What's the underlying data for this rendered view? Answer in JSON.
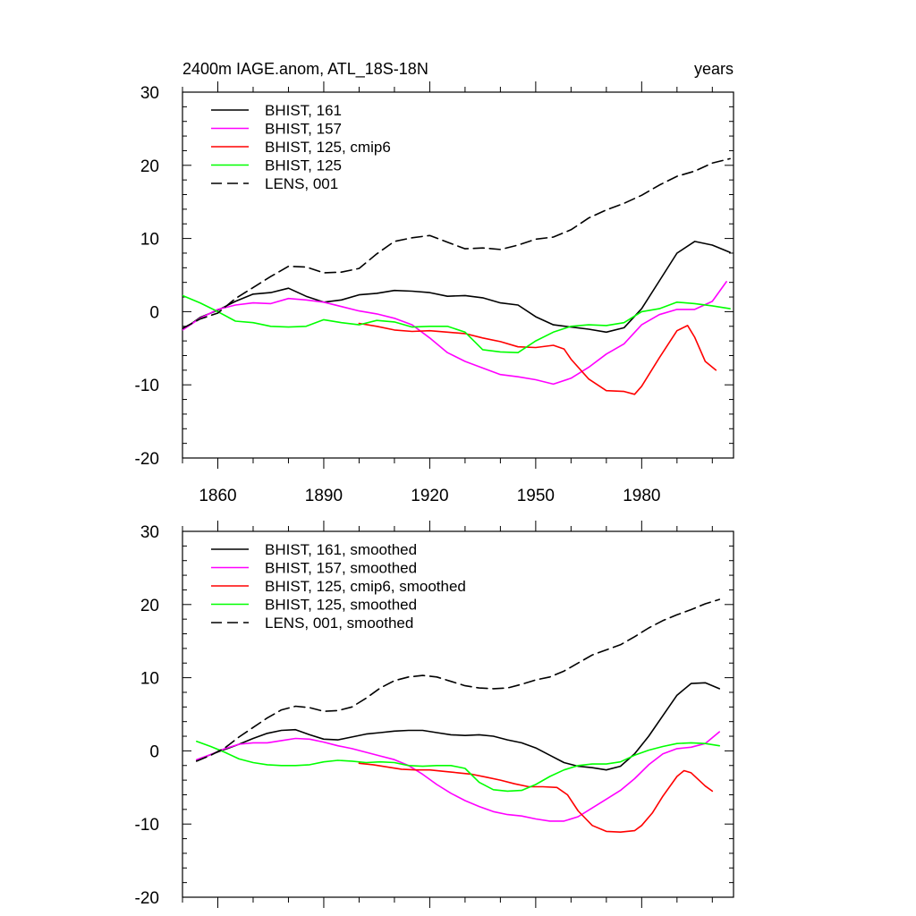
{
  "chart_data": [
    {
      "type": "line",
      "title": "2400m IAGE.anom, ATL_18S-18N",
      "units": "years",
      "xlim": [
        1850,
        2006
      ],
      "ylim": [
        -20,
        30
      ],
      "xticks": [
        1860,
        1890,
        1920,
        1950,
        1980
      ],
      "yticks": [
        -20,
        -10,
        0,
        10,
        20,
        30
      ],
      "show_x_tick_labels": true,
      "legend": "top-left",
      "series": [
        {
          "name": "BHIST, 161",
          "color": "#000000",
          "dash": "solid",
          "x": [
            1850,
            1855,
            1860,
            1865,
            1870,
            1875,
            1880,
            1885,
            1890,
            1895,
            1900,
            1905,
            1910,
            1915,
            1920,
            1925,
            1930,
            1935,
            1940,
            1945,
            1950,
            1955,
            1960,
            1965,
            1970,
            1975,
            1980,
            1985,
            1990,
            1995,
            2000,
            2005
          ],
          "y": [
            -2.5,
            -0.8,
            0.2,
            1.4,
            2.4,
            2.6,
            3.2,
            2.1,
            1.3,
            1.6,
            2.3,
            2.5,
            2.9,
            2.8,
            2.6,
            2.1,
            2.2,
            1.9,
            1.2,
            0.9,
            -0.7,
            -1.8,
            -2.1,
            -2.4,
            -2.8,
            -2.2,
            0.4,
            4.2,
            8.0,
            9.6,
            9.1,
            8.1
          ]
        },
        {
          "name": "BHIST, 157",
          "color": "#ff00ff",
          "dash": "solid",
          "x": [
            1850,
            1855,
            1860,
            1865,
            1870,
            1875,
            1880,
            1885,
            1890,
            1895,
            1900,
            1905,
            1910,
            1915,
            1920,
            1925,
            1930,
            1935,
            1940,
            1945,
            1950,
            1955,
            1960,
            1965,
            1970,
            1975,
            1980,
            1985,
            1990,
            1995,
            2000,
            2004
          ],
          "y": [
            -2.5,
            -0.9,
            0.3,
            0.9,
            1.2,
            1.1,
            1.8,
            1.6,
            1.3,
            0.7,
            0.1,
            -0.3,
            -0.9,
            -1.8,
            -3.6,
            -5.6,
            -6.8,
            -7.7,
            -8.6,
            -8.9,
            -9.3,
            -9.9,
            -9.1,
            -7.6,
            -5.8,
            -4.4,
            -1.8,
            -0.4,
            0.3,
            0.3,
            1.4,
            4.1
          ]
        },
        {
          "name": "BHIST, 125, cmip6",
          "color": "#ff0000",
          "dash": "solid",
          "x": [
            1900,
            1905,
            1910,
            1915,
            1920,
            1925,
            1930,
            1935,
            1940,
            1945,
            1950,
            1955,
            1958,
            1960,
            1965,
            1970,
            1975,
            1978,
            1980,
            1985,
            1990,
            1993,
            1995,
            1998,
            2001
          ],
          "y": [
            -1.6,
            -2.0,
            -2.5,
            -2.7,
            -2.6,
            -2.8,
            -3.0,
            -3.6,
            -4.1,
            -4.8,
            -4.9,
            -4.6,
            -5.1,
            -6.5,
            -9.2,
            -10.8,
            -10.9,
            -11.3,
            -10.2,
            -6.3,
            -2.6,
            -1.9,
            -3.5,
            -6.8,
            -8.0
          ]
        },
        {
          "name": "BHIST, 125",
          "color": "#00ff00",
          "dash": "solid",
          "x": [
            1850,
            1855,
            1860,
            1865,
            1870,
            1875,
            1880,
            1885,
            1890,
            1895,
            1900,
            1905,
            1910,
            1915,
            1920,
            1925,
            1930,
            1935,
            1940,
            1945,
            1950,
            1955,
            1960,
            1965,
            1970,
            1975,
            1980,
            1985,
            1990,
            1995,
            2000,
            2005
          ],
          "y": [
            2.2,
            1.2,
            0.0,
            -1.3,
            -1.5,
            -2.0,
            -2.1,
            -2.0,
            -1.1,
            -1.5,
            -1.8,
            -1.2,
            -1.4,
            -2.1,
            -2.0,
            -2.0,
            -2.8,
            -5.2,
            -5.5,
            -5.6,
            -4.0,
            -2.8,
            -2.0,
            -1.8,
            -1.9,
            -1.5,
            0.0,
            0.4,
            1.3,
            1.1,
            0.8,
            0.4
          ]
        },
        {
          "name": "LENS, 001",
          "color": "#000000",
          "dash": "dashed",
          "x": [
            1850,
            1855,
            1860,
            1865,
            1870,
            1875,
            1880,
            1885,
            1890,
            1895,
            1900,
            1905,
            1910,
            1915,
            1920,
            1925,
            1930,
            1935,
            1940,
            1945,
            1950,
            1955,
            1960,
            1965,
            1970,
            1975,
            1980,
            1985,
            1990,
            1995,
            2000,
            2005
          ],
          "y": [
            -2.3,
            -1.0,
            -0.2,
            1.8,
            3.3,
            4.8,
            6.2,
            6.1,
            5.3,
            5.4,
            5.9,
            7.9,
            9.6,
            10.1,
            10.4,
            9.5,
            8.6,
            8.7,
            8.5,
            9.1,
            9.9,
            10.2,
            11.2,
            12.8,
            13.9,
            14.8,
            15.9,
            17.3,
            18.5,
            19.2,
            20.3,
            20.9
          ]
        }
      ]
    },
    {
      "type": "line",
      "title": "",
      "units": "",
      "xlim": [
        1850,
        2006
      ],
      "ylim": [
        -20,
        30
      ],
      "xticks": [
        1860,
        1890,
        1920,
        1950,
        1980
      ],
      "yticks": [
        -20,
        -10,
        0,
        10,
        20,
        30
      ],
      "show_x_tick_labels": false,
      "legend": "top-left",
      "series": [
        {
          "name": "BHIST, 161, smoothed",
          "color": "#000000",
          "dash": "solid",
          "x": [
            1854,
            1858,
            1862,
            1866,
            1870,
            1874,
            1878,
            1882,
            1886,
            1890,
            1894,
            1898,
            1902,
            1906,
            1910,
            1914,
            1918,
            1922,
            1926,
            1930,
            1934,
            1938,
            1942,
            1946,
            1950,
            1954,
            1958,
            1962,
            1966,
            1970,
            1974,
            1978,
            1982,
            1986,
            1990,
            1994,
            1998,
            2002
          ],
          "y": [
            -1.3,
            -0.5,
            0.2,
            0.9,
            1.7,
            2.4,
            2.8,
            2.9,
            2.2,
            1.6,
            1.5,
            1.9,
            2.3,
            2.5,
            2.7,
            2.8,
            2.8,
            2.5,
            2.2,
            2.1,
            2.2,
            2.0,
            1.5,
            1.1,
            0.4,
            -0.6,
            -1.6,
            -2.1,
            -2.3,
            -2.6,
            -2.1,
            -0.4,
            2.0,
            4.8,
            7.6,
            9.2,
            9.3,
            8.5
          ]
        },
        {
          "name": "BHIST, 157, smoothed",
          "color": "#ff00ff",
          "dash": "solid",
          "x": [
            1854,
            1858,
            1862,
            1866,
            1870,
            1874,
            1878,
            1882,
            1886,
            1890,
            1894,
            1898,
            1902,
            1906,
            1910,
            1914,
            1918,
            1922,
            1926,
            1930,
            1934,
            1938,
            1942,
            1946,
            1950,
            1954,
            1958,
            1962,
            1966,
            1970,
            1974,
            1978,
            1982,
            1986,
            1990,
            1994,
            1998,
            2002
          ],
          "y": [
            -1.2,
            -0.5,
            0.3,
            0.9,
            1.1,
            1.1,
            1.4,
            1.7,
            1.6,
            1.2,
            0.7,
            0.3,
            -0.2,
            -0.7,
            -1.2,
            -2.0,
            -3.2,
            -4.6,
            -5.8,
            -6.8,
            -7.6,
            -8.3,
            -8.7,
            -8.9,
            -9.3,
            -9.6,
            -9.6,
            -9.0,
            -7.8,
            -6.6,
            -5.4,
            -3.8,
            -1.9,
            -0.4,
            0.3,
            0.5,
            1.0,
            2.6
          ]
        },
        {
          "name": "BHIST, 125, cmip6, smoothed",
          "color": "#ff0000",
          "dash": "solid",
          "x": [
            1900,
            1904,
            1908,
            1912,
            1916,
            1920,
            1924,
            1928,
            1932,
            1936,
            1940,
            1944,
            1948,
            1952,
            1956,
            1959,
            1962,
            1966,
            1970,
            1974,
            1978,
            1980,
            1983,
            1986,
            1990,
            1992,
            1994,
            1996,
            1998,
            2000
          ],
          "y": [
            -1.7,
            -1.9,
            -2.2,
            -2.5,
            -2.6,
            -2.6,
            -2.8,
            -3.0,
            -3.2,
            -3.6,
            -4.0,
            -4.5,
            -4.9,
            -4.9,
            -5.0,
            -6.0,
            -8.2,
            -10.2,
            -11.0,
            -11.1,
            -10.9,
            -10.2,
            -8.5,
            -6.2,
            -3.5,
            -2.7,
            -3.0,
            -3.9,
            -4.8,
            -5.5
          ]
        },
        {
          "name": "BHIST, 125, smoothed",
          "color": "#00ff00",
          "dash": "solid",
          "x": [
            1854,
            1858,
            1862,
            1866,
            1870,
            1874,
            1878,
            1882,
            1886,
            1890,
            1894,
            1898,
            1902,
            1906,
            1910,
            1914,
            1918,
            1922,
            1926,
            1930,
            1934,
            1938,
            1942,
            1946,
            1950,
            1954,
            1958,
            1962,
            1966,
            1970,
            1974,
            1978,
            1982,
            1986,
            1990,
            1994,
            1998,
            2002
          ],
          "y": [
            1.3,
            0.6,
            -0.2,
            -1.1,
            -1.6,
            -1.9,
            -2.0,
            -2.0,
            -1.9,
            -1.5,
            -1.3,
            -1.4,
            -1.6,
            -1.5,
            -1.6,
            -2.0,
            -2.1,
            -2.0,
            -2.0,
            -2.4,
            -4.3,
            -5.3,
            -5.5,
            -5.4,
            -4.6,
            -3.5,
            -2.6,
            -2.0,
            -1.8,
            -1.8,
            -1.5,
            -0.6,
            0.1,
            0.6,
            1.0,
            1.1,
            1.0,
            0.7
          ]
        },
        {
          "name": "LENS, 001, smoothed",
          "color": "#000000",
          "dash": "dashed",
          "x": [
            1854,
            1858,
            1862,
            1866,
            1870,
            1874,
            1878,
            1882,
            1886,
            1890,
            1894,
            1898,
            1902,
            1906,
            1910,
            1914,
            1918,
            1922,
            1926,
            1930,
            1934,
            1938,
            1942,
            1946,
            1950,
            1954,
            1958,
            1962,
            1966,
            1970,
            1974,
            1978,
            1982,
            1986,
            1990,
            1994,
            1998,
            2002
          ],
          "y": [
            -1.4,
            -0.6,
            0.4,
            1.9,
            3.2,
            4.5,
            5.6,
            6.1,
            5.9,
            5.4,
            5.5,
            6.0,
            7.2,
            8.6,
            9.6,
            10.1,
            10.3,
            10.1,
            9.5,
            8.9,
            8.6,
            8.5,
            8.6,
            9.1,
            9.7,
            10.1,
            10.9,
            12.0,
            13.1,
            13.8,
            14.5,
            15.6,
            16.8,
            17.8,
            18.6,
            19.3,
            20.1,
            20.7
          ]
        }
      ]
    }
  ]
}
